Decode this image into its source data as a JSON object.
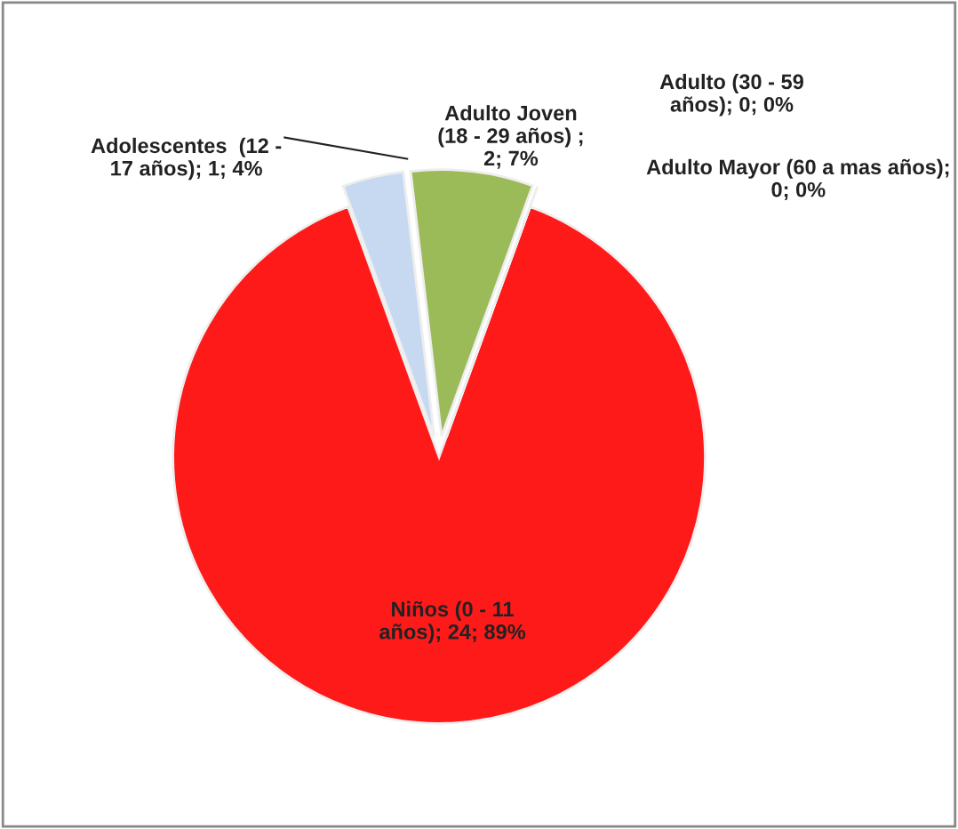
{
  "chart_data": {
    "type": "pie",
    "categories": [
      "Niños (0 - 11\naños)",
      "Adolescentes  (12 -\n17 años)",
      "Adulto Joven\n(18 - 29 años)",
      "Adulto (30 - 59\naños)",
      "Adulto Mayor (60 a mas años)"
    ],
    "values": [
      24,
      1,
      2,
      0,
      0
    ],
    "colors": [
      "#ff1a1a",
      "#c6d9f1",
      "#9bbb59",
      "#8064a2",
      "#4bacc6"
    ],
    "value_labels": [
      "; 24; 89%",
      "; 1; 4%",
      " ;\n2; 7%",
      "; 0; 0%",
      ";\n0; 0%"
    ]
  }
}
